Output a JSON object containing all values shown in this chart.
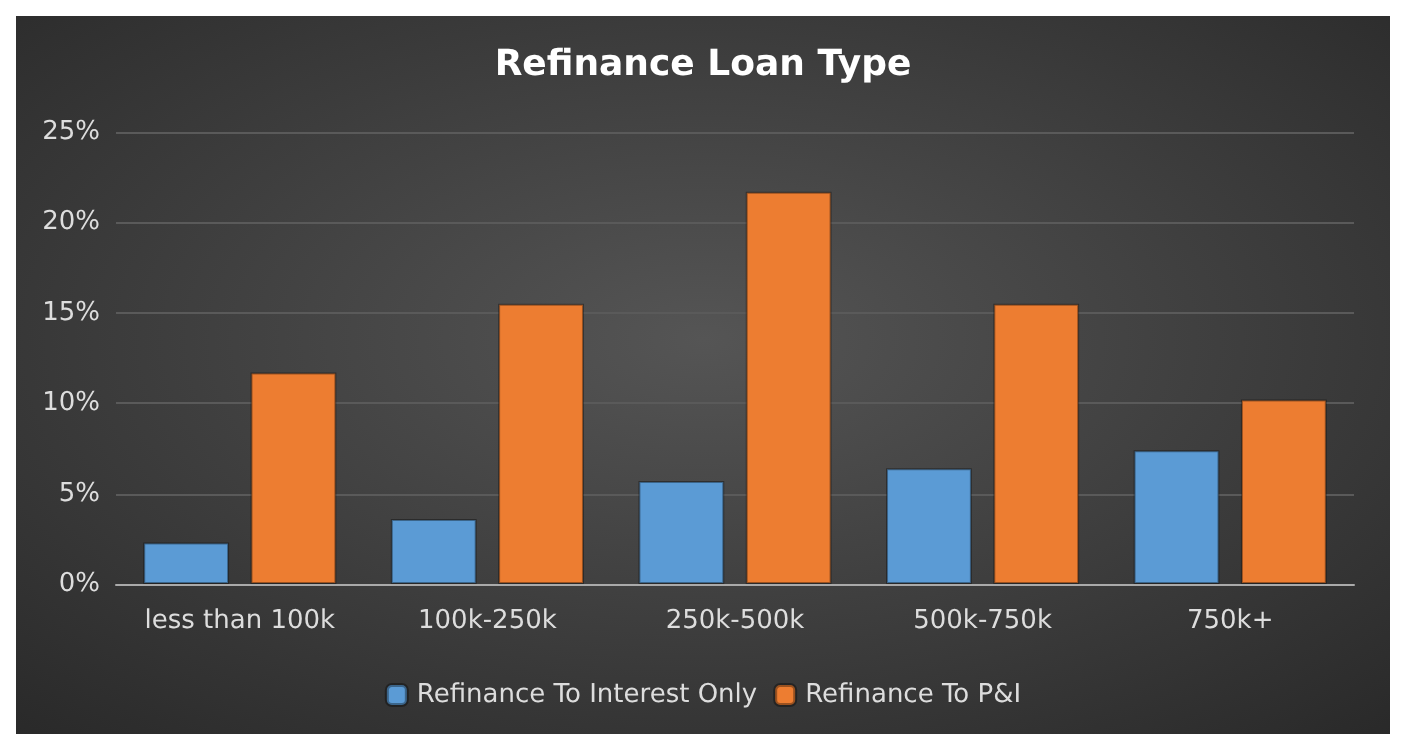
{
  "chart_data": {
    "type": "bar",
    "title": "Refinance Loan Type",
    "categories": [
      "less than 100k",
      "100k-250k",
      "250k-500k",
      "500k-750k",
      "750k+"
    ],
    "series": [
      {
        "name": "Refinance To Interest Only",
        "color": "#5b9bd5",
        "values": [
          2.3,
          3.6,
          5.7,
          6.4,
          7.4
        ]
      },
      {
        "name": "Refinance To P&I",
        "color": "#ed7d31",
        "values": [
          11.7,
          15.5,
          21.7,
          15.5,
          10.2
        ]
      }
    ],
    "ylim": [
      0,
      25
    ],
    "yticks": [
      {
        "value": 0,
        "label": "0%"
      },
      {
        "value": 5,
        "label": "5%"
      },
      {
        "value": 10,
        "label": "10%"
      },
      {
        "value": 15,
        "label": "15%"
      },
      {
        "value": 20,
        "label": "20%"
      },
      {
        "value": 25,
        "label": "25%"
      }
    ],
    "grid": "y",
    "legend": "bottom"
  }
}
